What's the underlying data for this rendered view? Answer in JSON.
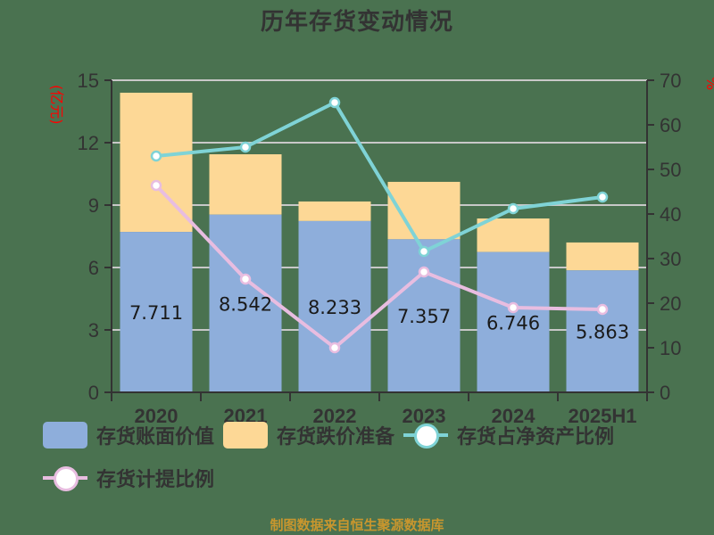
{
  "title": "历年存货变动情况",
  "source_note": "制图数据来自恒生聚源数据库",
  "colors": {
    "background": "#4a7250",
    "book_value": "#8eaedb",
    "impairment": "#fdd896",
    "ratio_net_assets": "#7fd3d6",
    "provision_ratio": "#e8bde0",
    "grid": "#c8c8c8",
    "axis": "#333333",
    "unit_label": "#ff0000",
    "source": "#c8962e"
  },
  "chart_data": {
    "type": "bar",
    "subtype": "stacked-bar-with-lines-dual-axis",
    "title": "历年存货变动情况",
    "categories": [
      "2020",
      "2021",
      "2022",
      "2023",
      "2024",
      "2025H1"
    ],
    "series": [
      {
        "name": "存货账面价值",
        "type": "bar",
        "axis": "left",
        "stack": "inv",
        "values": [
          7.711,
          8.542,
          8.233,
          7.357,
          6.746,
          5.863
        ],
        "data_labels": [
          "7.711",
          "8.542",
          "8.233",
          "7.357",
          "6.746",
          "5.863"
        ]
      },
      {
        "name": "存货跌价准备",
        "type": "bar",
        "axis": "left",
        "stack": "inv",
        "values": [
          6.69,
          2.9,
          0.94,
          2.76,
          1.61,
          1.34
        ]
      },
      {
        "name": "存货占净资产比例",
        "type": "line",
        "axis": "right",
        "values": [
          53.0,
          55.0,
          65.0,
          31.6,
          41.2,
          43.8
        ]
      },
      {
        "name": "存货计提比例",
        "type": "line",
        "axis": "right",
        "values": [
          46.4,
          25.4,
          10.0,
          27.0,
          19.0,
          18.6
        ]
      }
    ],
    "left_axis": {
      "label": "(亿元)",
      "ylim": [
        0,
        15
      ],
      "ticks": [
        "0",
        "3",
        "6",
        "9",
        "12",
        "15"
      ]
    },
    "right_axis": {
      "label": "%",
      "ylim": [
        0,
        70
      ],
      "ticks": [
        "0",
        "10",
        "20",
        "30",
        "40",
        "50",
        "60",
        "70"
      ]
    },
    "xlabel": "",
    "grid": true,
    "legend_position": "bottom"
  },
  "legend": [
    {
      "label": "存货账面价值",
      "kind": "swatch"
    },
    {
      "label": "存货跌价准备",
      "kind": "swatch"
    },
    {
      "label": "存货占净资产比例",
      "kind": "line"
    },
    {
      "label": "存货计提比例",
      "kind": "line"
    }
  ]
}
